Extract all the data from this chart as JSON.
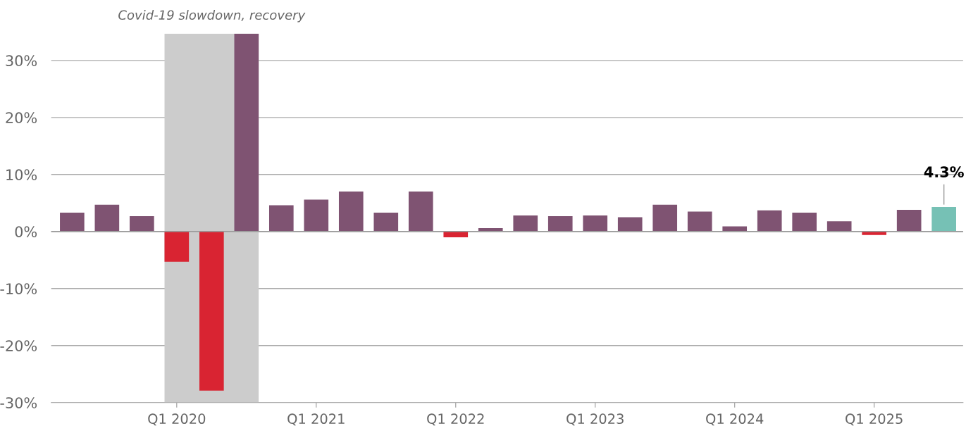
{
  "chart_data": {
    "type": "bar",
    "categories": [
      null,
      null,
      null,
      "Q1 2020",
      null,
      null,
      null,
      "Q1 2021",
      null,
      null,
      null,
      "Q1 2022",
      null,
      null,
      null,
      "Q1 2023",
      null,
      null,
      null,
      "Q1 2024",
      null,
      null,
      null,
      "Q1 2025",
      null,
      null
    ],
    "values": [
      3.3,
      4.7,
      2.7,
      -5.3,
      -27.9,
      34.7,
      4.6,
      5.6,
      7.0,
      3.3,
      7.0,
      -1.0,
      0.6,
      2.8,
      2.7,
      2.8,
      2.5,
      4.7,
      3.5,
      0.9,
      3.7,
      3.3,
      1.8,
      -0.6,
      3.8,
      4.3
    ],
    "colors": [
      "#7f5372",
      "#7f5372",
      "#7f5372",
      "#d92432",
      "#d92432",
      "#7f5372",
      "#7f5372",
      "#7f5372",
      "#7f5372",
      "#7f5372",
      "#7f5372",
      "#d92432",
      "#7f5372",
      "#7f5372",
      "#7f5372",
      "#7f5372",
      "#7f5372",
      "#7f5372",
      "#7f5372",
      "#7f5372",
      "#7f5372",
      "#7f5372",
      "#7f5372",
      "#d92432",
      "#7f5372",
      "#76c1b5"
    ],
    "value_labels": [
      null,
      null,
      null,
      null,
      null,
      null,
      null,
      null,
      null,
      null,
      null,
      null,
      null,
      null,
      null,
      null,
      null,
      null,
      null,
      null,
      null,
      null,
      null,
      null,
      null,
      "4.3%"
    ],
    "ylim": [
      -30,
      34.7
    ],
    "yticks": [
      {
        "value": -30,
        "label": "-30%"
      },
      {
        "value": -20,
        "label": "-20%"
      },
      {
        "value": -10,
        "label": "-10%"
      },
      {
        "value": 0,
        "label": "0%"
      },
      {
        "value": 10,
        "label": "10%"
      },
      {
        "value": 20,
        "label": "20%"
      },
      {
        "value": 30,
        "label": "30%"
      }
    ],
    "grid": "y",
    "annotations": [
      "Covid-19 slowdown, recovery"
    ]
  }
}
